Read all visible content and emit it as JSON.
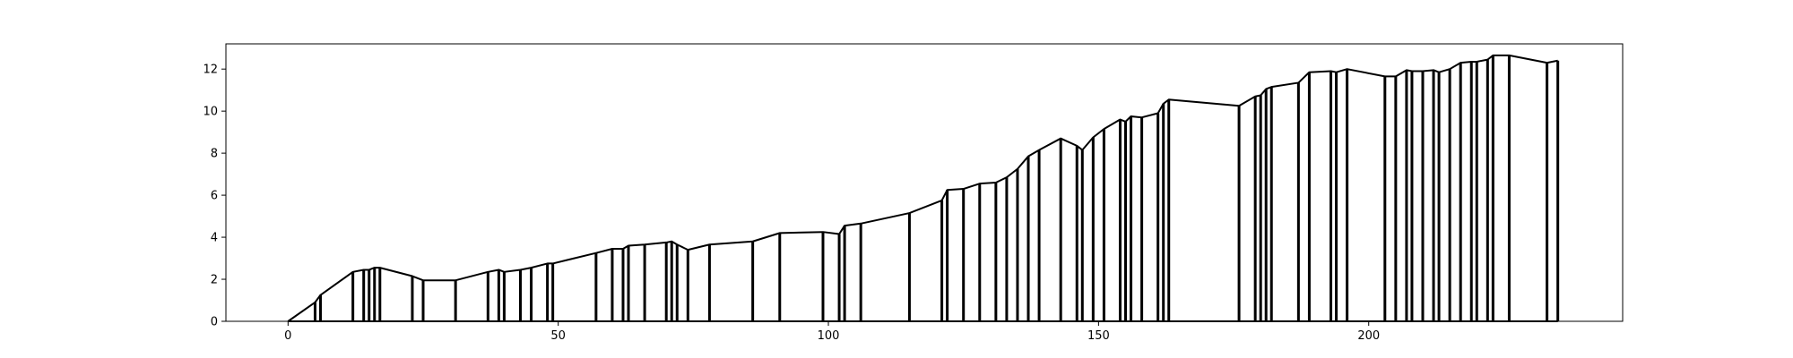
{
  "chart_data": {
    "type": "line",
    "title": "",
    "xlabel": "",
    "ylabel": "",
    "xlim": [
      -11.5,
      247
    ],
    "ylim": [
      0,
      13.2
    ],
    "grid": false,
    "legend": "none",
    "x_ticks": [
      0,
      50,
      100,
      150,
      200
    ],
    "y_ticks": [
      0,
      2,
      4,
      6,
      8,
      10,
      12
    ],
    "series": [
      {
        "color": "#000000",
        "points": [
          [
            0,
            0
          ],
          [
            5,
            0.9
          ],
          [
            6,
            1.25
          ],
          [
            12,
            2.35
          ],
          [
            14,
            2.45
          ],
          [
            15,
            2.45
          ],
          [
            16,
            2.55
          ],
          [
            17,
            2.55
          ],
          [
            23,
            2.15
          ],
          [
            25,
            1.95
          ],
          [
            31,
            1.95
          ],
          [
            37,
            2.35
          ],
          [
            39,
            2.45
          ],
          [
            40,
            2.35
          ],
          [
            43,
            2.45
          ],
          [
            45,
            2.55
          ],
          [
            48,
            2.75
          ],
          [
            49,
            2.75
          ],
          [
            57,
            3.25
          ],
          [
            60,
            3.45
          ],
          [
            62,
            3.45
          ],
          [
            63,
            3.6
          ],
          [
            66,
            3.65
          ],
          [
            70,
            3.75
          ],
          [
            71,
            3.8
          ],
          [
            72,
            3.65
          ],
          [
            74,
            3.4
          ],
          [
            78,
            3.65
          ],
          [
            86,
            3.8
          ],
          [
            91,
            4.2
          ],
          [
            99,
            4.25
          ],
          [
            102,
            4.15
          ],
          [
            103,
            4.55
          ],
          [
            106,
            4.65
          ],
          [
            115,
            5.15
          ],
          [
            121,
            5.75
          ],
          [
            122,
            6.25
          ],
          [
            125,
            6.3
          ],
          [
            128,
            6.55
          ],
          [
            131,
            6.6
          ],
          [
            133,
            6.85
          ],
          [
            135,
            7.25
          ],
          [
            137,
            7.85
          ],
          [
            139,
            8.15
          ],
          [
            143,
            8.7
          ],
          [
            146,
            8.35
          ],
          [
            147,
            8.15
          ],
          [
            149,
            8.75
          ],
          [
            151,
            9.15
          ],
          [
            154,
            9.6
          ],
          [
            155,
            9.5
          ],
          [
            156,
            9.75
          ],
          [
            158,
            9.7
          ],
          [
            161,
            9.9
          ],
          [
            162,
            10.35
          ],
          [
            163,
            10.55
          ],
          [
            176,
            10.25
          ],
          [
            179,
            10.7
          ],
          [
            180,
            10.75
          ],
          [
            181,
            11.05
          ],
          [
            182,
            11.15
          ],
          [
            187,
            11.35
          ],
          [
            189,
            11.85
          ],
          [
            193,
            11.9
          ],
          [
            194,
            11.85
          ],
          [
            196,
            12
          ],
          [
            203,
            11.65
          ],
          [
            205,
            11.65
          ],
          [
            207,
            11.95
          ],
          [
            208,
            11.9
          ],
          [
            210,
            11.9
          ],
          [
            212,
            11.95
          ],
          [
            213,
            11.85
          ],
          [
            215,
            12
          ],
          [
            217,
            12.3
          ],
          [
            219,
            12.35
          ],
          [
            220,
            12.35
          ],
          [
            222,
            12.45
          ],
          [
            223,
            12.65
          ],
          [
            226,
            12.65
          ],
          [
            233,
            12.3
          ],
          [
            235,
            12.4
          ]
        ]
      }
    ]
  }
}
